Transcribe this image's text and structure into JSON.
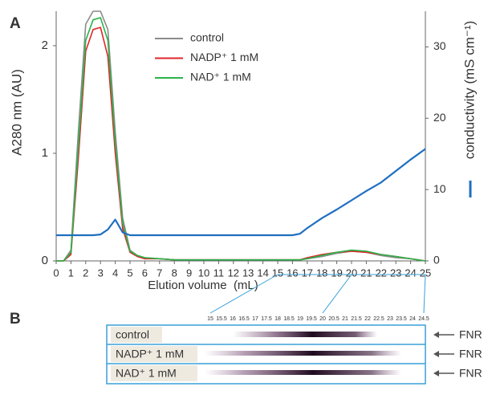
{
  "chart_data": {
    "type": "line",
    "panel_label": "A",
    "xlabel": "Elution volume  (mL)",
    "ylabel": "A280 nm (AU)",
    "y2label": "conductivity (mS cm⁻¹)",
    "x": [
      0,
      0.5,
      1,
      1.5,
      2,
      2.5,
      3,
      3.5,
      4,
      4.5,
      5,
      5.5,
      6,
      7,
      8,
      10,
      12,
      14,
      16,
      16.5,
      17,
      18,
      19,
      20,
      21,
      22,
      23,
      24,
      25
    ],
    "series": [
      {
        "name": "control",
        "color": "#8c8c8c",
        "values": [
          0,
          0,
          0.1,
          1.2,
          2.2,
          2.32,
          2.32,
          2.15,
          1.2,
          0.4,
          0.1,
          0.05,
          0.03,
          0.02,
          0.01,
          0.01,
          0.01,
          0.01,
          0.01,
          0.01,
          0.02,
          0.04,
          0.07,
          0.09,
          0.08,
          0.05,
          0.03,
          0.02,
          0
        ]
      },
      {
        "name": "NADP⁺ 1 mM",
        "color": "#e0262b",
        "values": [
          0,
          0,
          0.06,
          0.95,
          1.95,
          2.15,
          2.17,
          1.9,
          1.0,
          0.3,
          0.08,
          0.04,
          0.02,
          0.02,
          0.01,
          0.01,
          0.01,
          0.01,
          0.01,
          0.01,
          0.03,
          0.06,
          0.08,
          0.09,
          0.08,
          0.06,
          0.04,
          0.02,
          0
        ]
      },
      {
        "name": "NAD⁺ 1 mM",
        "color": "#2bb34a",
        "values": [
          0,
          0,
          0.08,
          1.05,
          2.05,
          2.24,
          2.26,
          2.05,
          1.1,
          0.35,
          0.09,
          0.05,
          0.03,
          0.02,
          0.01,
          0.01,
          0.01,
          0.01,
          0.01,
          0.01,
          0.02,
          0.05,
          0.08,
          0.1,
          0.09,
          0.06,
          0.04,
          0.02,
          0
        ]
      },
      {
        "color": "#1f6fc0",
        "axis": "y2",
        "values": [
          3.6,
          3.6,
          3.6,
          3.6,
          3.6,
          3.6,
          3.7,
          4.4,
          5.8,
          4.0,
          3.6,
          3.6,
          3.6,
          3.6,
          3.6,
          3.6,
          3.6,
          3.6,
          3.6,
          3.8,
          4.6,
          6.0,
          7.2,
          8.5,
          9.8,
          11.0,
          12.6,
          14.2,
          15.7
        ]
      }
    ],
    "xlim": [
      0,
      25
    ],
    "xticks": [
      0,
      1,
      2,
      3,
      4,
      5,
      6,
      7,
      8,
      9,
      10,
      11,
      12,
      13,
      14,
      15,
      16,
      17,
      18,
      19,
      20,
      21,
      22,
      23,
      24,
      25
    ],
    "ylim": [
      0,
      2.32
    ],
    "yticks": [
      0,
      1,
      2
    ],
    "y2lim": [
      0,
      35
    ],
    "y2ticks": [
      0,
      10,
      20,
      30
    ]
  },
  "gel": {
    "panel_label": "B",
    "fractions": [
      15,
      15.5,
      16,
      16.5,
      17,
      17.5,
      18,
      18.5,
      19,
      19.5,
      20,
      20.5,
      21,
      21.5,
      22,
      22.5,
      23,
      23.5,
      24,
      24.5
    ],
    "lanes": [
      "control",
      "NADP⁺ 1 mM",
      "NAD⁺ 1 mM"
    ],
    "marker": "FNR"
  }
}
